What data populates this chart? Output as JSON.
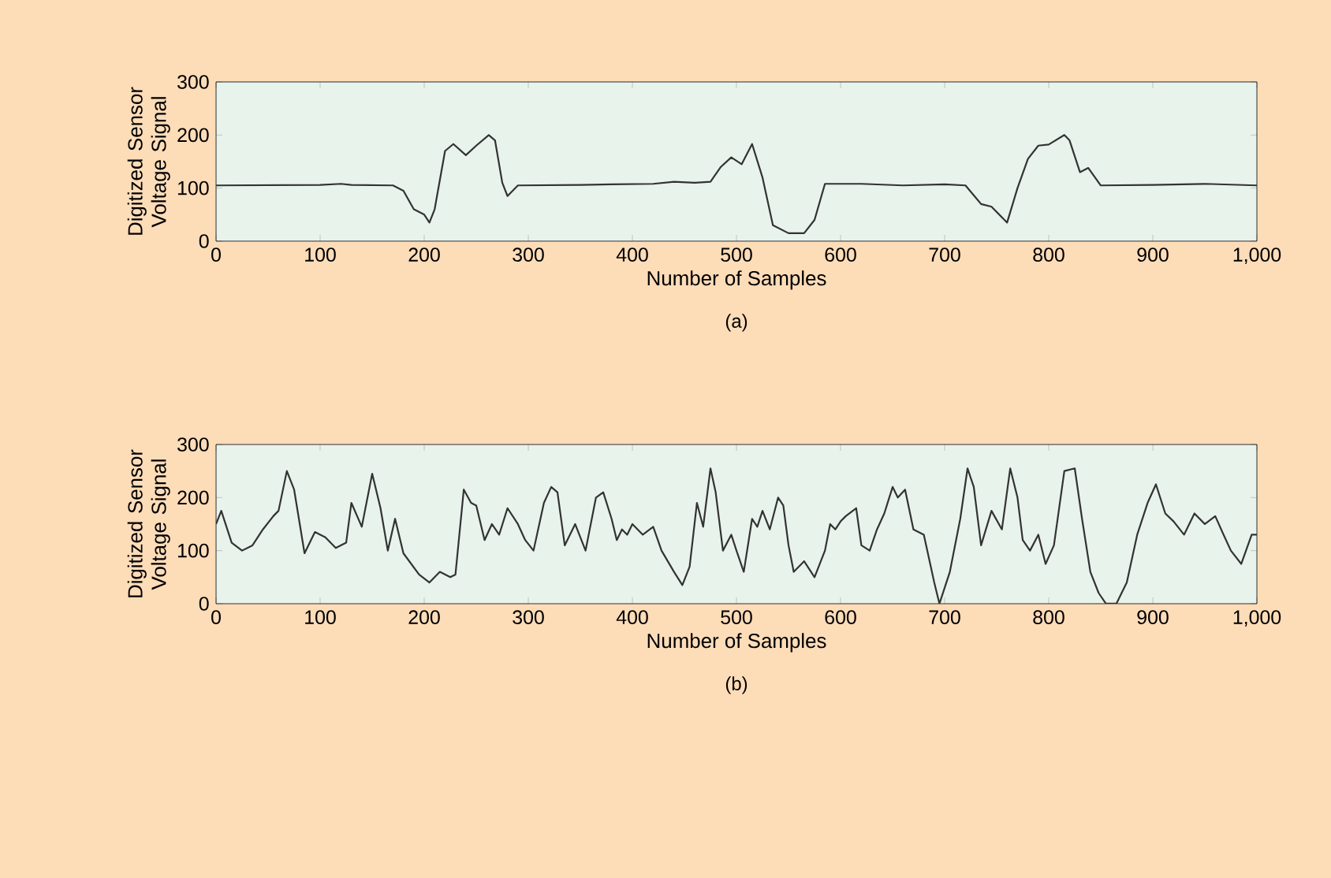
{
  "chart_data": [
    {
      "type": "line",
      "xlabel": "Number of Samples",
      "ylabel": "Digitized Sensor Voltage Signal",
      "annotations": [
        "(a)"
      ],
      "xlim": [
        0,
        1000
      ],
      "ylim": [
        0,
        300
      ],
      "xticks": [
        0,
        100,
        200,
        300,
        400,
        500,
        600,
        700,
        800,
        900,
        {
          "value": 1000,
          "label": "1,000"
        }
      ],
      "yticks": [
        0,
        100,
        200,
        300
      ],
      "grid": false,
      "series": [
        {
          "color": "#333333",
          "x": [
            0,
            100,
            120,
            130,
            170,
            180,
            190,
            200,
            205,
            210,
            220,
            228,
            240,
            250,
            262,
            268,
            275,
            280,
            290,
            350,
            380,
            420,
            440,
            460,
            475,
            485,
            495,
            505,
            515,
            525,
            535,
            550,
            565,
            575,
            585,
            620,
            660,
            700,
            720,
            735,
            745,
            760,
            770,
            780,
            790,
            800,
            815,
            820,
            830,
            838,
            850,
            900,
            950,
            1000
          ],
          "values": [
            105,
            106,
            108,
            106,
            105,
            95,
            60,
            50,
            35,
            60,
            170,
            183,
            162,
            180,
            200,
            190,
            110,
            85,
            105,
            106,
            107,
            108,
            112,
            110,
            112,
            140,
            158,
            145,
            183,
            120,
            30,
            15,
            15,
            40,
            108,
            108,
            105,
            107,
            105,
            70,
            65,
            35,
            100,
            155,
            180,
            182,
            200,
            190,
            130,
            138,
            105,
            106,
            108,
            105
          ]
        }
      ]
    },
    {
      "type": "line",
      "xlabel": "Number of Samples",
      "ylabel": "Digitized Sensor Voltage Signal",
      "annotations": [
        "(b)"
      ],
      "xlim": [
        0,
        1000
      ],
      "ylim": [
        0,
        300
      ],
      "xticks": [
        0,
        100,
        200,
        300,
        400,
        500,
        600,
        700,
        800,
        900,
        {
          "value": 1000,
          "label": "1,000"
        }
      ],
      "yticks": [
        0,
        100,
        200,
        300
      ],
      "grid": false,
      "series": [
        {
          "color": "#333333",
          "x": [
            0,
            5,
            15,
            25,
            35,
            45,
            55,
            60,
            68,
            75,
            85,
            95,
            105,
            115,
            125,
            130,
            140,
            150,
            158,
            165,
            172,
            180,
            195,
            205,
            215,
            225,
            230,
            238,
            245,
            250,
            258,
            265,
            272,
            280,
            290,
            297,
            305,
            315,
            322,
            328,
            335,
            345,
            355,
            365,
            372,
            380,
            385,
            390,
            395,
            400,
            410,
            420,
            428,
            440,
            448,
            455,
            462,
            468,
            475,
            480,
            487,
            495,
            500,
            507,
            515,
            520,
            525,
            532,
            540,
            545,
            550,
            555,
            565,
            575,
            585,
            590,
            595,
            600,
            605,
            615,
            620,
            628,
            635,
            642,
            650,
            655,
            662,
            670,
            680,
            690,
            695,
            705,
            715,
            722,
            728,
            735,
            745,
            755,
            763,
            770,
            775,
            782,
            790,
            797,
            805,
            815,
            825,
            832,
            840,
            848,
            855,
            865,
            875,
            885,
            895,
            903,
            912,
            920,
            930,
            940,
            950,
            960,
            968,
            975,
            985,
            995,
            1000
          ],
          "values": [
            150,
            175,
            115,
            100,
            110,
            140,
            165,
            175,
            250,
            215,
            95,
            135,
            125,
            105,
            115,
            190,
            145,
            245,
            180,
            100,
            160,
            95,
            55,
            40,
            60,
            50,
            55,
            215,
            190,
            185,
            120,
            150,
            130,
            180,
            150,
            120,
            100,
            190,
            220,
            210,
            110,
            150,
            100,
            200,
            210,
            160,
            120,
            140,
            130,
            150,
            130,
            145,
            100,
            60,
            35,
            70,
            190,
            145,
            255,
            210,
            100,
            130,
            100,
            60,
            160,
            145,
            175,
            140,
            200,
            185,
            110,
            60,
            80,
            50,
            100,
            150,
            140,
            155,
            165,
            180,
            110,
            100,
            140,
            170,
            220,
            200,
            215,
            140,
            130,
            40,
            0,
            60,
            160,
            255,
            220,
            110,
            175,
            140,
            255,
            200,
            120,
            100,
            130,
            75,
            110,
            250,
            255,
            160,
            60,
            20,
            0,
            0,
            40,
            130,
            190,
            225,
            170,
            155,
            130,
            170,
            150,
            165,
            130,
            100,
            75,
            130,
            130
          ]
        }
      ]
    }
  ]
}
